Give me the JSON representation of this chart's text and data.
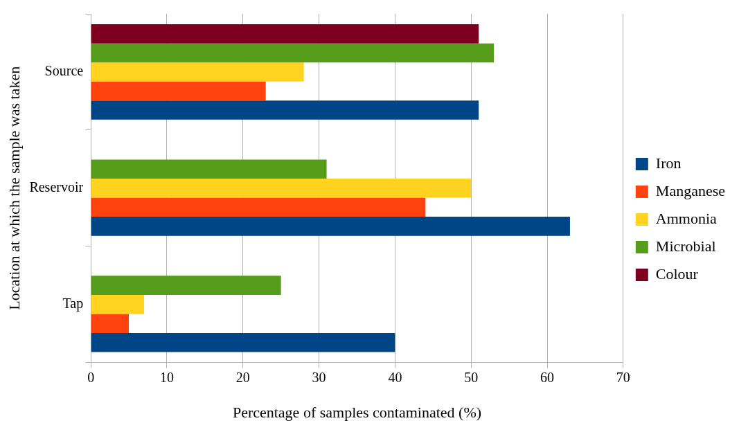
{
  "chart_data": {
    "type": "bar",
    "orientation": "horizontal",
    "xlabel": "Percentage of samples contaminated (%)",
    "ylabel": "Location at which the sample was taken",
    "categories": [
      "Source",
      "Reservoir",
      "Tap"
    ],
    "series": [
      {
        "name": "Iron",
        "color": "#004586",
        "values": [
          51,
          63,
          40
        ]
      },
      {
        "name": "Manganese",
        "color": "#ff420e",
        "values": [
          23,
          44,
          5
        ]
      },
      {
        "name": "Ammonia",
        "color": "#ffd320",
        "values": [
          28,
          50,
          7
        ]
      },
      {
        "name": "Microbial",
        "color": "#579d1c",
        "values": [
          53,
          31,
          25
        ]
      },
      {
        "name": "Colour",
        "color": "#7e0021",
        "values": [
          51,
          null,
          null
        ]
      }
    ],
    "xlim": [
      0,
      70
    ],
    "xticks": [
      0,
      10,
      20,
      30,
      40,
      50,
      60,
      70
    ],
    "grid": "x",
    "legend": "right"
  }
}
